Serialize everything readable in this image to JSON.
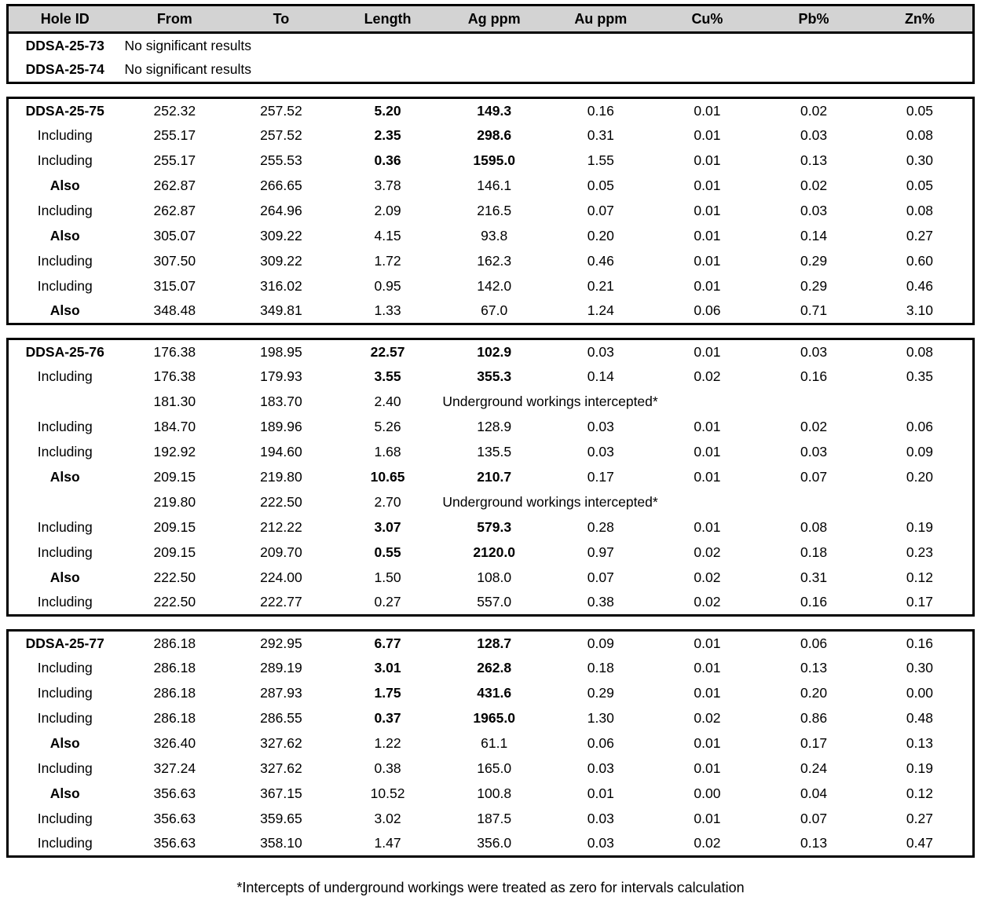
{
  "colors": {
    "header_background": "#d3d3d3",
    "border": "#000000",
    "text": "#000000"
  },
  "table": {
    "columns": [
      "Hole ID",
      "From",
      "To",
      "Length",
      "Ag ppm",
      "Au ppm",
      "Cu%",
      "Pb%",
      "Zn%"
    ],
    "sections": [
      {
        "has_header": true,
        "rows": [
          {
            "label": "DDSA-25-73",
            "label_bold": true,
            "note": "No significant results"
          },
          {
            "label": "DDSA-25-74",
            "label_bold": true,
            "note": "No significant results"
          }
        ]
      },
      {
        "has_header": false,
        "rows": [
          {
            "label": "DDSA-25-75",
            "label_bold": true,
            "values": [
              "252.32",
              "257.52",
              "5.20",
              "149.3",
              "0.16",
              "0.01",
              "0.02",
              "0.05"
            ],
            "bold": [
              0,
              0,
              1,
              1,
              0,
              0,
              0,
              0
            ]
          },
          {
            "label": "Including",
            "label_bold": false,
            "values": [
              "255.17",
              "257.52",
              "2.35",
              "298.6",
              "0.31",
              "0.01",
              "0.03",
              "0.08"
            ],
            "bold": [
              0,
              0,
              1,
              1,
              0,
              0,
              0,
              0
            ]
          },
          {
            "label": "Including",
            "label_bold": false,
            "values": [
              "255.17",
              "255.53",
              "0.36",
              "1595.0",
              "1.55",
              "0.01",
              "0.13",
              "0.30"
            ],
            "bold": [
              0,
              0,
              1,
              1,
              0,
              0,
              0,
              0
            ]
          },
          {
            "label": "Also",
            "label_bold": true,
            "values": [
              "262.87",
              "266.65",
              "3.78",
              "146.1",
              "0.05",
              "0.01",
              "0.02",
              "0.05"
            ],
            "bold": [
              0,
              0,
              0,
              0,
              0,
              0,
              0,
              0
            ]
          },
          {
            "label": "Including",
            "label_bold": false,
            "values": [
              "262.87",
              "264.96",
              "2.09",
              "216.5",
              "0.07",
              "0.01",
              "0.03",
              "0.08"
            ],
            "bold": [
              0,
              0,
              0,
              0,
              0,
              0,
              0,
              0
            ]
          },
          {
            "label": "Also",
            "label_bold": true,
            "values": [
              "305.07",
              "309.22",
              "4.15",
              "93.8",
              "0.20",
              "0.01",
              "0.14",
              "0.27"
            ],
            "bold": [
              0,
              0,
              0,
              0,
              0,
              0,
              0,
              0
            ]
          },
          {
            "label": "Including",
            "label_bold": false,
            "values": [
              "307.50",
              "309.22",
              "1.72",
              "162.3",
              "0.46",
              "0.01",
              "0.29",
              "0.60"
            ],
            "bold": [
              0,
              0,
              0,
              0,
              0,
              0,
              0,
              0
            ]
          },
          {
            "label": "Including",
            "label_bold": false,
            "values": [
              "315.07",
              "316.02",
              "0.95",
              "142.0",
              "0.21",
              "0.01",
              "0.29",
              "0.46"
            ],
            "bold": [
              0,
              0,
              0,
              0,
              0,
              0,
              0,
              0
            ]
          },
          {
            "label": "Also",
            "label_bold": true,
            "values": [
              "348.48",
              "349.81",
              "1.33",
              "67.0",
              "1.24",
              "0.06",
              "0.71",
              "3.10"
            ],
            "bold": [
              0,
              0,
              0,
              0,
              0,
              0,
              0,
              0
            ]
          }
        ]
      },
      {
        "has_header": false,
        "rows": [
          {
            "label": "DDSA-25-76",
            "label_bold": true,
            "values": [
              "176.38",
              "198.95",
              "22.57",
              "102.9",
              "0.03",
              "0.01",
              "0.03",
              "0.08"
            ],
            "bold": [
              0,
              0,
              1,
              1,
              0,
              0,
              0,
              0
            ]
          },
          {
            "label": "Including",
            "label_bold": false,
            "values": [
              "176.38",
              "179.93",
              "3.55",
              "355.3",
              "0.14",
              "0.02",
              "0.16",
              "0.35"
            ],
            "bold": [
              0,
              0,
              1,
              1,
              0,
              0,
              0,
              0
            ]
          },
          {
            "label": "",
            "label_bold": false,
            "values": [
              "181.30",
              "183.70",
              "2.40"
            ],
            "span_text": "Underground workings intercepted*"
          },
          {
            "label": "Including",
            "label_bold": false,
            "values": [
              "184.70",
              "189.96",
              "5.26",
              "128.9",
              "0.03",
              "0.01",
              "0.02",
              "0.06"
            ],
            "bold": [
              0,
              0,
              0,
              0,
              0,
              0,
              0,
              0
            ]
          },
          {
            "label": "Including",
            "label_bold": false,
            "values": [
              "192.92",
              "194.60",
              "1.68",
              "135.5",
              "0.03",
              "0.01",
              "0.03",
              "0.09"
            ],
            "bold": [
              0,
              0,
              0,
              0,
              0,
              0,
              0,
              0
            ]
          },
          {
            "label": "Also",
            "label_bold": true,
            "values": [
              "209.15",
              "219.80",
              "10.65",
              "210.7",
              "0.17",
              "0.01",
              "0.07",
              "0.20"
            ],
            "bold": [
              0,
              0,
              1,
              1,
              0,
              0,
              0,
              0
            ]
          },
          {
            "label": "",
            "label_bold": false,
            "values": [
              "219.80",
              "222.50",
              "2.70"
            ],
            "span_text": "Underground workings intercepted*"
          },
          {
            "label": "Including",
            "label_bold": false,
            "values": [
              "209.15",
              "212.22",
              "3.07",
              "579.3",
              "0.28",
              "0.01",
              "0.08",
              "0.19"
            ],
            "bold": [
              0,
              0,
              1,
              1,
              0,
              0,
              0,
              0
            ]
          },
          {
            "label": "Including",
            "label_bold": false,
            "values": [
              "209.15",
              "209.70",
              "0.55",
              "2120.0",
              "0.97",
              "0.02",
              "0.18",
              "0.23"
            ],
            "bold": [
              0,
              0,
              1,
              1,
              0,
              0,
              0,
              0
            ]
          },
          {
            "label": "Also",
            "label_bold": true,
            "values": [
              "222.50",
              "224.00",
              "1.50",
              "108.0",
              "0.07",
              "0.02",
              "0.31",
              "0.12"
            ],
            "bold": [
              0,
              0,
              0,
              0,
              0,
              0,
              0,
              0
            ]
          },
          {
            "label": "Including",
            "label_bold": false,
            "values": [
              "222.50",
              "222.77",
              "0.27",
              "557.0",
              "0.38",
              "0.02",
              "0.16",
              "0.17"
            ],
            "bold": [
              0,
              0,
              0,
              0,
              0,
              0,
              0,
              0
            ]
          }
        ]
      },
      {
        "has_header": false,
        "rows": [
          {
            "label": "DDSA-25-77",
            "label_bold": true,
            "values": [
              "286.18",
              "292.95",
              "6.77",
              "128.7",
              "0.09",
              "0.01",
              "0.06",
              "0.16"
            ],
            "bold": [
              0,
              0,
              1,
              1,
              0,
              0,
              0,
              0
            ]
          },
          {
            "label": "Including",
            "label_bold": false,
            "values": [
              "286.18",
              "289.19",
              "3.01",
              "262.8",
              "0.18",
              "0.01",
              "0.13",
              "0.30"
            ],
            "bold": [
              0,
              0,
              1,
              1,
              0,
              0,
              0,
              0
            ]
          },
          {
            "label": "Including",
            "label_bold": false,
            "values": [
              "286.18",
              "287.93",
              "1.75",
              "431.6",
              "0.29",
              "0.01",
              "0.20",
              "0.00"
            ],
            "bold": [
              0,
              0,
              1,
              1,
              0,
              0,
              0,
              0
            ]
          },
          {
            "label": "Including",
            "label_bold": false,
            "values": [
              "286.18",
              "286.55",
              "0.37",
              "1965.0",
              "1.30",
              "0.02",
              "0.86",
              "0.48"
            ],
            "bold": [
              0,
              0,
              1,
              1,
              0,
              0,
              0,
              0
            ]
          },
          {
            "label": "Also",
            "label_bold": true,
            "values": [
              "326.40",
              "327.62",
              "1.22",
              "61.1",
              "0.06",
              "0.01",
              "0.17",
              "0.13"
            ],
            "bold": [
              0,
              0,
              0,
              0,
              0,
              0,
              0,
              0
            ]
          },
          {
            "label": "Including",
            "label_bold": false,
            "values": [
              "327.24",
              "327.62",
              "0.38",
              "165.0",
              "0.03",
              "0.01",
              "0.24",
              "0.19"
            ],
            "bold": [
              0,
              0,
              0,
              0,
              0,
              0,
              0,
              0
            ]
          },
          {
            "label": "Also",
            "label_bold": true,
            "values": [
              "356.63",
              "367.15",
              "10.52",
              "100.8",
              "0.01",
              "0.00",
              "0.04",
              "0.12"
            ],
            "bold": [
              0,
              0,
              0,
              0,
              0,
              0,
              0,
              0
            ]
          },
          {
            "label": "Including",
            "label_bold": false,
            "values": [
              "356.63",
              "359.65",
              "3.02",
              "187.5",
              "0.03",
              "0.01",
              "0.07",
              "0.27"
            ],
            "bold": [
              0,
              0,
              0,
              0,
              0,
              0,
              0,
              0
            ]
          },
          {
            "label": "Including",
            "label_bold": false,
            "values": [
              "356.63",
              "358.10",
              "1.47",
              "356.0",
              "0.03",
              "0.02",
              "0.13",
              "0.47"
            ],
            "bold": [
              0,
              0,
              0,
              0,
              0,
              0,
              0,
              0
            ]
          }
        ]
      }
    ],
    "footnote": "*Intercepts of underground workings were treated as zero for intervals calculation"
  }
}
